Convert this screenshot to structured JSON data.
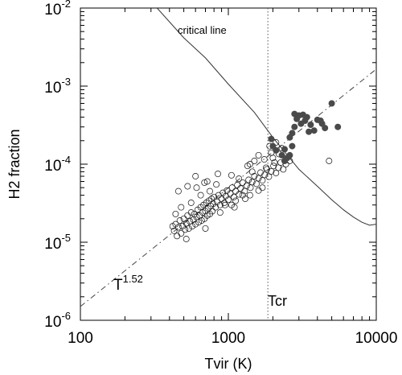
{
  "chart_data": {
    "type": "scatter",
    "title": "",
    "xlabel": "Tvir (K)",
    "ylabel": "H2 fraction",
    "xscale": "log",
    "yscale": "log",
    "xlim": [
      100,
      10000
    ],
    "ylim": [
      1e-06,
      0.01
    ],
    "grid": false,
    "x_tick_labels": [
      {
        "value": 100,
        "label": "100"
      },
      {
        "value": 1000,
        "label": "1000"
      },
      {
        "value": 10000,
        "label": "10000"
      }
    ],
    "y_tick_labels": [
      {
        "value": 1e-06,
        "base": "10",
        "exp": "-6"
      },
      {
        "value": 1e-05,
        "base": "10",
        "exp": "-5"
      },
      {
        "value": 0.0001,
        "base": "10",
        "exp": "-4"
      },
      {
        "value": 0.001,
        "base": "10",
        "exp": "-3"
      },
      {
        "value": 0.01,
        "base": "10",
        "exp": "-2"
      }
    ],
    "annotations": {
      "critical_line": "critical line",
      "power_law_base": "T",
      "power_law_exp": "1.52",
      "tcr": "Tcr"
    },
    "reference_lines": {
      "tcr_value": 1850,
      "power_law": {
        "exponent": 1.52,
        "points": [
          [
            100,
            1.5e-06
          ],
          [
            10000,
            0.00165
          ]
        ]
      },
      "critical_curve": [
        [
          330,
          0.01
        ],
        [
          500,
          0.00415
        ],
        [
          700,
          0.0023
        ],
        [
          1000,
          0.00106
        ],
        [
          1500,
          0.00046
        ],
        [
          2000,
          0.00022
        ],
        [
          3000,
          8.6e-05
        ],
        [
          4000,
          5.2e-05
        ],
        [
          5000,
          3.5e-05
        ],
        [
          6000,
          2.6e-05
        ],
        [
          7000,
          2.1e-05
        ],
        [
          8000,
          1.8e-05
        ],
        [
          9000,
          1.65e-05
        ],
        [
          10000,
          1.7e-05
        ]
      ]
    },
    "series": [
      {
        "marker": "open-circle",
        "points": [
          [
            430,
            1.4e-05
          ],
          [
            440,
            1.7e-05
          ],
          [
            450,
            1.2e-05
          ],
          [
            460,
            1.55e-05
          ],
          [
            470,
            1.9e-05
          ],
          [
            480,
            1.3e-05
          ],
          [
            490,
            1.6e-05
          ],
          [
            500,
            2e-05
          ],
          [
            510,
            1.45e-05
          ],
          [
            520,
            1.75e-05
          ],
          [
            530,
            2.2e-05
          ],
          [
            540,
            1.5e-05
          ],
          [
            550,
            1.85e-05
          ],
          [
            560,
            2.4e-05
          ],
          [
            570,
            1.6e-05
          ],
          [
            580,
            1.95e-05
          ],
          [
            590,
            2.3e-05
          ],
          [
            600,
            1.7e-05
          ],
          [
            610,
            2.1e-05
          ],
          [
            620,
            2.6e-05
          ],
          [
            630,
            1.8e-05
          ],
          [
            640,
            2.2e-05
          ],
          [
            650,
            2.8e-05
          ],
          [
            660,
            1.9e-05
          ],
          [
            670,
            2.4e-05
          ],
          [
            680,
            3e-05
          ],
          [
            690,
            2e-05
          ],
          [
            700,
            2.5e-05
          ],
          [
            710,
            3.2e-05
          ],
          [
            720,
            2.2e-05
          ],
          [
            730,
            2.7e-05
          ],
          [
            740,
            3.4e-05
          ],
          [
            750,
            2.3e-05
          ],
          [
            760,
            2.9e-05
          ],
          [
            770,
            3.6e-05
          ],
          [
            780,
            2.5e-05
          ],
          [
            790,
            3.1e-05
          ],
          [
            800,
            3.8e-05
          ],
          [
            820,
            2.8e-05
          ],
          [
            840,
            3.3e-05
          ],
          [
            860,
            4e-05
          ],
          [
            880,
            3e-05
          ],
          [
            900,
            3.6e-05
          ],
          [
            920,
            4.3e-05
          ],
          [
            940,
            3.2e-05
          ],
          [
            960,
            3.9e-05
          ],
          [
            980,
            4.6e-05
          ],
          [
            1000,
            3.5e-05
          ],
          [
            1030,
            4.2e-05
          ],
          [
            1060,
            5e-05
          ],
          [
            1090,
            3.8e-05
          ],
          [
            1120,
            4.5e-05
          ],
          [
            1150,
            5.4e-05
          ],
          [
            1180,
            4.1e-05
          ],
          [
            1210,
            4.9e-05
          ],
          [
            1250,
            5.8e-05
          ],
          [
            1290,
            4.5e-05
          ],
          [
            1330,
            5.3e-05
          ],
          [
            1370,
            6.3e-05
          ],
          [
            1410,
            5e-05
          ],
          [
            1450,
            5.9e-05
          ],
          [
            1500,
            7e-05
          ],
          [
            1550,
            5.6e-05
          ],
          [
            1600,
            6.6e-05
          ],
          [
            1650,
            7.8e-05
          ],
          [
            1700,
            6.2e-05
          ],
          [
            1760,
            7.3e-05
          ],
          [
            1820,
            8.6e-05
          ],
          [
            1880,
            6.9e-05
          ],
          [
            1950,
            8.1e-05
          ],
          [
            2020,
            9.5e-05
          ],
          [
            2100,
            7.7e-05
          ],
          [
            2180,
            9e-05
          ],
          [
            2260,
            0.000105
          ],
          [
            2350,
            8.6e-05
          ],
          [
            2450,
            0.0001
          ],
          [
            1050,
            3e-05
          ],
          [
            1120,
            3.4e-05
          ],
          [
            1400,
            4e-05
          ],
          [
            1600,
            4.6e-05
          ],
          [
            460,
            4.5e-05
          ],
          [
            530,
            5.2e-05
          ],
          [
            600,
            7e-05
          ],
          [
            720,
            6e-05
          ],
          [
            850,
            7.5e-05
          ],
          [
            1050,
            7.2e-05
          ],
          [
            1350,
            9.5e-05
          ],
          [
            1500,
            0.00011
          ],
          [
            1600,
            0.00013
          ],
          [
            1750,
            0.000115
          ],
          [
            2000,
            0.00012
          ],
          [
            2200,
            0.000135
          ],
          [
            1400,
            0.0001
          ],
          [
            2600,
            0.00011
          ],
          [
            4800,
            0.00011
          ],
          [
            1700,
            5e-05
          ],
          [
            1900,
            0.00017
          ],
          [
            2100,
            0.00019
          ],
          [
            1800,
            9e-05
          ],
          [
            1250,
            4e-05
          ],
          [
            950,
            3e-05
          ],
          [
            750,
            4.5e-05
          ],
          [
            650,
            4e-05
          ],
          [
            560,
            3.2e-05
          ],
          [
            480,
            2.8e-05
          ],
          [
            440,
            2.3e-05
          ],
          [
            420,
            1.6e-05
          ],
          [
            520,
            1.1e-05
          ],
          [
            700,
            1.5e-05
          ],
          [
            880,
            2.4e-05
          ],
          [
            1100,
            2.8e-05
          ],
          [
            1300,
            3.6e-05
          ],
          [
            2300,
            0.00016
          ],
          [
            1950,
            0.00014
          ],
          [
            2050,
            0.000105
          ],
          [
            830,
            5.5e-05
          ],
          [
            690,
            5.8e-05
          ],
          [
            610,
            5e-05
          ],
          [
            1180,
            6.5e-05
          ],
          [
            1450,
            8e-05
          ]
        ]
      },
      {
        "marker": "filled-circle",
        "points": [
          [
            1950,
            0.00021
          ],
          [
            2000,
            0.00017
          ],
          [
            2100,
            0.00015
          ],
          [
            2300,
            0.00013
          ],
          [
            2400,
            0.00011
          ],
          [
            2500,
            0.00012
          ],
          [
            2600,
            0.00013
          ],
          [
            2700,
            0.00017
          ],
          [
            2600,
            0.00022
          ],
          [
            2800,
            0.0003
          ],
          [
            2900,
            0.00038
          ],
          [
            3000,
            0.00042
          ],
          [
            3200,
            0.00043
          ],
          [
            3400,
            0.0004
          ],
          [
            2800,
            0.00044
          ],
          [
            3600,
            0.00032
          ],
          [
            3800,
            0.00027
          ],
          [
            3500,
            0.00026
          ],
          [
            4000,
            0.00037
          ],
          [
            4300,
            0.00033
          ],
          [
            4500,
            0.00029
          ],
          [
            5000,
            0.0006
          ],
          [
            5500,
            0.0003
          ],
          [
            3100,
            0.00033
          ],
          [
            2700,
            0.00025
          ],
          [
            3300,
            0.00036
          ],
          [
            4200,
            0.00036
          ],
          [
            2400,
            0.000155
          ]
        ]
      }
    ]
  }
}
